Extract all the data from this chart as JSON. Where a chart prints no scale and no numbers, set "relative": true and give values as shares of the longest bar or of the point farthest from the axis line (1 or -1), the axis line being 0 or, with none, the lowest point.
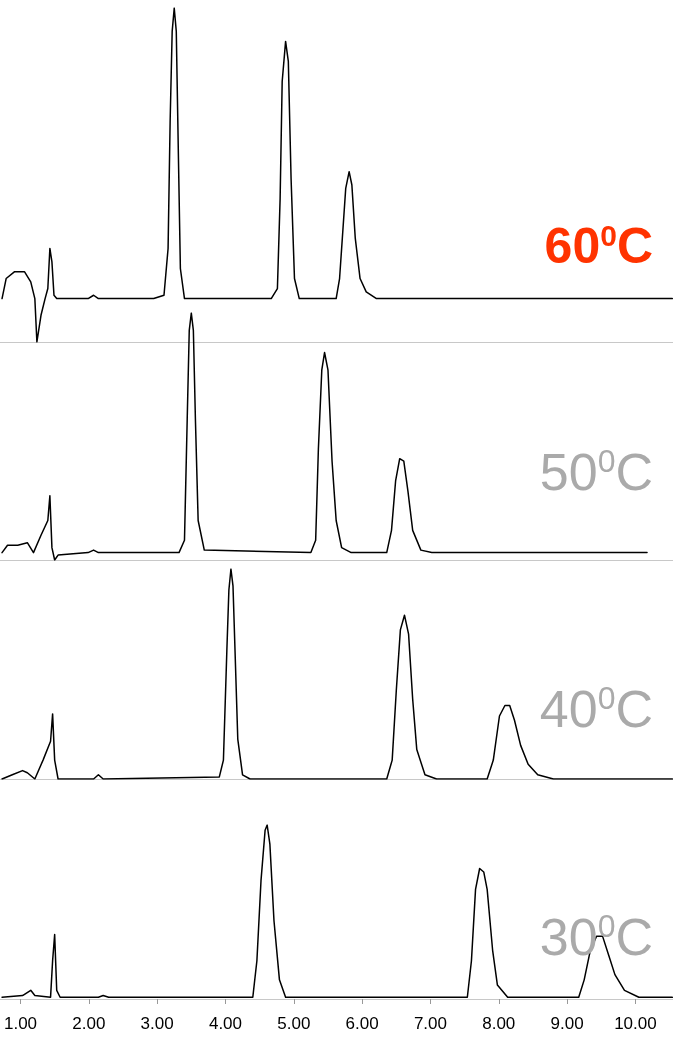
{
  "chart_data": [
    {
      "type": "line",
      "relative": true,
      "tick_labels": false,
      "marker": "none",
      "line_style": "solid",
      "grid": false,
      "xlim": [
        0.7,
        10.55
      ],
      "annotations": [
        "60$^{0}$C"
      ],
      "series": [
        {
          "color": "#000000",
          "x": [
            0.73,
            0.79,
            0.91,
            1.06,
            1.15,
            1.21,
            1.24,
            1.3,
            1.36,
            1.4,
            1.43,
            1.46,
            1.49,
            1.53,
            1.99,
            2.07,
            2.14,
            2.95,
            3.1,
            3.16,
            3.19,
            3.22,
            3.25,
            3.28,
            3.31,
            3.34,
            3.4,
            4.67,
            4.76,
            4.8,
            4.83,
            4.88,
            4.92,
            4.96,
            5.01,
            5.08,
            5.62,
            5.67,
            5.72,
            5.76,
            5.81,
            5.85,
            5.9,
            5.97,
            6.06,
            6.21,
            10.54
          ],
          "values": [
            0.13,
            0.19,
            0.21,
            0.21,
            0.18,
            0.13,
            0,
            0.08,
            0.13,
            0.16,
            0.28,
            0.24,
            0.14,
            0.13,
            0.13,
            0.14,
            0.13,
            0.13,
            0.14,
            0.28,
            0.66,
            0.93,
            1,
            0.93,
            0.57,
            0.22,
            0.13,
            0.13,
            0.16,
            0.43,
            0.78,
            0.9,
            0.84,
            0.49,
            0.19,
            0.13,
            0.13,
            0.19,
            0.34,
            0.46,
            0.51,
            0.47,
            0.31,
            0.19,
            0.15,
            0.13,
            0.13
          ]
        }
      ]
    },
    {
      "type": "line",
      "relative": true,
      "tick_labels": false,
      "marker": "none",
      "line_style": "solid",
      "grid": false,
      "xlim": [
        0.7,
        10.55
      ],
      "annotations": [
        "50$^{0}$C"
      ],
      "series": [
        {
          "color": "#000000",
          "x": [
            0.73,
            0.81,
            0.96,
            1.1,
            1.19,
            1.3,
            1.4,
            1.43,
            1.46,
            1.5,
            1.55,
            1.99,
            2.07,
            2.14,
            3.32,
            3.4,
            3.44,
            3.47,
            3.5,
            3.53,
            3.56,
            3.6,
            3.69,
            5.25,
            5.32,
            5.36,
            5.41,
            5.45,
            5.5,
            5.56,
            5.62,
            5.7,
            5.84,
            6.36,
            6.43,
            6.49,
            6.55,
            6.61,
            6.67,
            6.74,
            6.86,
            7.02,
            10.17
          ],
          "values": [
            0.03,
            0.06,
            0.06,
            0.07,
            0.03,
            0.1,
            0.16,
            0.26,
            0.05,
            0,
            0.02,
            0.03,
            0.04,
            0.03,
            0.03,
            0.08,
            0.57,
            0.93,
            1,
            0.93,
            0.57,
            0.16,
            0.04,
            0.03,
            0.08,
            0.45,
            0.77,
            0.84,
            0.77,
            0.4,
            0.16,
            0.05,
            0.03,
            0.03,
            0.12,
            0.32,
            0.41,
            0.4,
            0.28,
            0.12,
            0.04,
            0.03,
            0.03
          ]
        }
      ]
    },
    {
      "type": "line",
      "relative": true,
      "tick_labels": false,
      "marker": "none",
      "line_style": "solid",
      "grid": false,
      "xlim": [
        0.7,
        10.55
      ],
      "annotations": [
        "40$^{0}$C"
      ],
      "series": [
        {
          "color": "#000000",
          "x": [
            0.73,
            0.88,
            1.03,
            1.1,
            1.21,
            1.33,
            1.44,
            1.47,
            1.5,
            1.55,
            2.07,
            2.14,
            2.21,
            3.91,
            3.97,
            4.02,
            4.05,
            4.08,
            4.11,
            4.14,
            4.18,
            4.25,
            4.36,
            6.36,
            6.44,
            6.5,
            6.56,
            6.62,
            6.68,
            6.74,
            6.8,
            6.92,
            7.09,
            7.83,
            7.92,
            8.01,
            8.09,
            8.16,
            8.23,
            8.32,
            8.43,
            8.57,
            8.8,
            10.54
          ],
          "values": [
            0,
            0.02,
            0.04,
            0.03,
            0,
            0.09,
            0.18,
            0.31,
            0.09,
            0,
            0,
            0.02,
            0,
            0.01,
            0.09,
            0.61,
            0.9,
            1,
            0.92,
            0.61,
            0.19,
            0.02,
            0,
            0,
            0.09,
            0.42,
            0.71,
            0.78,
            0.69,
            0.38,
            0.14,
            0.02,
            0,
            0,
            0.09,
            0.3,
            0.35,
            0.35,
            0.28,
            0.16,
            0.07,
            0.02,
            0,
            0
          ]
        }
      ]
    },
    {
      "type": "line",
      "relative": true,
      "tick_labels": "x",
      "marker": "none",
      "line_style": "solid",
      "grid": false,
      "xlim": [
        0.7,
        10.55
      ],
      "xticks": [
        {
          "value": 1,
          "label": "1.00"
        },
        {
          "value": 2,
          "label": "2.00"
        },
        {
          "value": 3,
          "label": "3.00"
        },
        {
          "value": 4,
          "label": "4.00"
        },
        {
          "value": 5,
          "label": "5.00"
        },
        {
          "value": 6,
          "label": "6.00"
        },
        {
          "value": 7,
          "label": "7.00"
        },
        {
          "value": 8,
          "label": "8.00"
        },
        {
          "value": 9,
          "label": "9.00"
        },
        {
          "value": 10,
          "label": "10.00"
        }
      ],
      "annotations": [
        "30$^{0}$C"
      ],
      "series": [
        {
          "color": "#000000",
          "x": [
            0.73,
            1.03,
            1.15,
            1.21,
            1.44,
            1.47,
            1.5,
            1.53,
            1.58,
            2.14,
            2.21,
            2.29,
            4.4,
            4.46,
            4.52,
            4.58,
            4.61,
            4.65,
            4.71,
            4.79,
            4.88,
            7.54,
            7.6,
            7.66,
            7.72,
            7.78,
            7.83,
            7.91,
            7.98,
            8.13,
            9.17,
            9.25,
            9.34,
            9.43,
            9.52,
            9.61,
            9.7,
            9.84,
            10.05,
            10.54
          ],
          "values": [
            0.01,
            0.02,
            0.05,
            0.02,
            0.01,
            0.22,
            0.37,
            0.05,
            0.01,
            0.01,
            0.02,
            0.01,
            0.01,
            0.22,
            0.68,
            0.97,
            1,
            0.89,
            0.45,
            0.11,
            0.01,
            0.01,
            0.22,
            0.63,
            0.75,
            0.73,
            0.63,
            0.28,
            0.08,
            0.01,
            0.01,
            0.11,
            0.28,
            0.36,
            0.36,
            0.25,
            0.14,
            0.05,
            0.01,
            0.01
          ]
        }
      ]
    }
  ]
}
